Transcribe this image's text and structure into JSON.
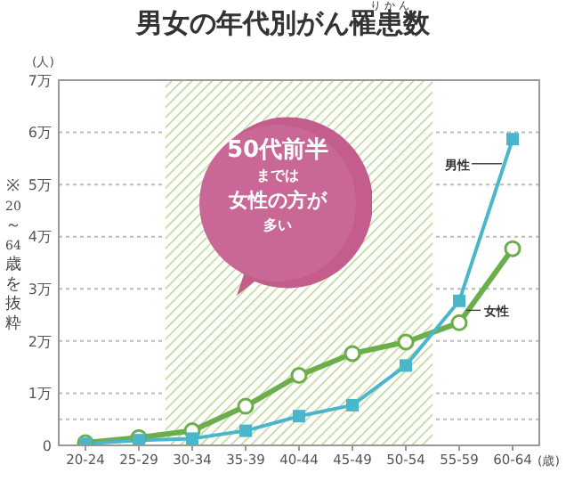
{
  "chart_data": {
    "type": "line",
    "title": "男女の年代別がん罹患数",
    "xlabel": "(歳)",
    "ylabel": "(人)",
    "annotations": [
      "りかん",
      "50代前半",
      "までは",
      "女性の方が",
      "多い",
      "※20～64歳を抜粋"
    ],
    "categories": [
      "20-24",
      "25-29",
      "30-34",
      "35-39",
      "40-44",
      "45-49",
      "50-54",
      "55-59",
      "60-64"
    ],
    "series": [
      {
        "name": "男性",
        "color": "#4ab6cc",
        "marker": "square",
        "values": [
          0.03,
          0.1,
          0.13,
          0.28,
          0.56,
          0.77,
          1.53,
          2.77,
          5.87
        ]
      },
      {
        "name": "女性",
        "color": "#6cae4c",
        "marker": "circle",
        "values": [
          0.05,
          0.15,
          0.28,
          0.75,
          1.34,
          1.76,
          1.98,
          2.35,
          3.77
        ]
      }
    ],
    "ylim": [
      0,
      7
    ],
    "yticks": [
      0,
      {
        "value": 0.5,
        "label": null
      },
      {
        "value": 1,
        "label": "1万"
      },
      {
        "value": 2,
        "label": "2万"
      },
      {
        "value": 3,
        "label": "3万"
      },
      {
        "value": 4,
        "label": "4万"
      },
      {
        "value": 5,
        "label": "5万"
      },
      {
        "value": 6,
        "label": "6万"
      },
      {
        "value": 7,
        "label": "7万"
      }
    ],
    "grid": "y",
    "bands": [
      {
        "axis": "x",
        "from": "30-34",
        "to": "50-54",
        "color": "#b9d48f"
      }
    ]
  }
}
